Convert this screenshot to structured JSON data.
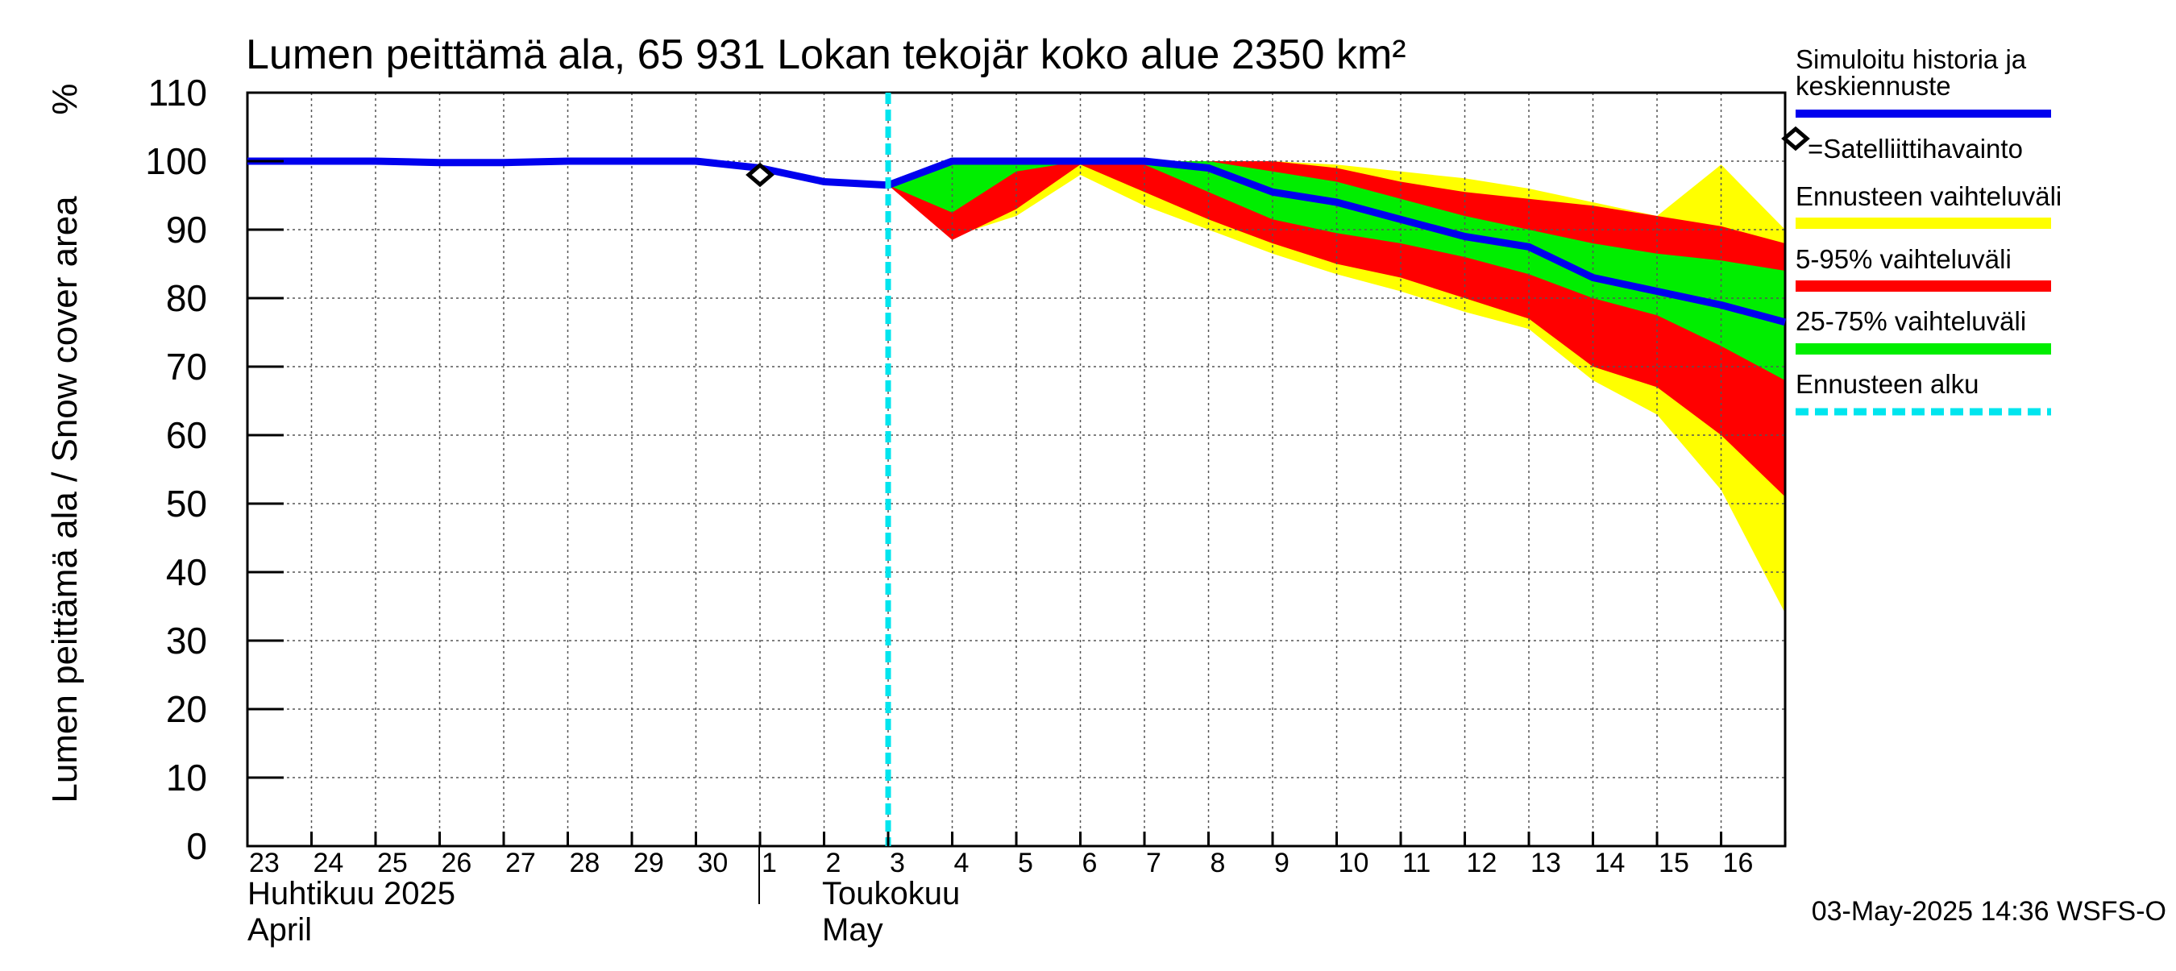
{
  "chart_data": {
    "type": "area",
    "title": "Lumen peittämä ala, 65 931 Lokan tekojär koko alue 2350 km²",
    "ylabel": "Lumen peittämä ala / Snow cover area",
    "yunit": "%",
    "ylim": [
      0,
      110
    ],
    "yticks": [
      0,
      10,
      20,
      30,
      40,
      50,
      60,
      70,
      80,
      90,
      100,
      110
    ],
    "xlim": [
      "2025-04-23",
      "2025-05-16T23:59"
    ],
    "grid": true,
    "x_day_labels": [
      "23",
      "24",
      "25",
      "26",
      "27",
      "28",
      "29",
      "30",
      "1",
      "2",
      "3",
      "4",
      "5",
      "6",
      "7",
      "8",
      "9",
      "10",
      "11",
      "12",
      "13",
      "14",
      "15",
      "16"
    ],
    "month_labels": [
      {
        "fi": "Huhtikuu  2025",
        "en": "April"
      },
      {
        "fi": "Toukokuu",
        "en": "May"
      }
    ],
    "forecast_start": "2025-05-03",
    "history": {
      "name": "Simuloitu historia ja keskiennuste",
      "color": "#0000ee",
      "x": [
        "2025-04-23",
        "2025-04-24",
        "2025-04-25",
        "2025-04-26",
        "2025-04-27",
        "2025-04-28",
        "2025-04-29",
        "2025-04-30",
        "2025-05-01",
        "2025-05-02",
        "2025-05-03"
      ],
      "y": [
        100,
        100,
        100,
        99.8,
        99.8,
        100,
        100,
        100,
        99,
        97,
        96.5
      ]
    },
    "forecast_x": [
      "2025-05-03",
      "2025-05-04",
      "2025-05-05",
      "2025-05-06",
      "2025-05-07",
      "2025-05-08",
      "2025-05-09",
      "2025-05-10",
      "2025-05-11",
      "2025-05-12",
      "2025-05-13",
      "2025-05-14",
      "2025-05-15",
      "2025-05-16",
      "2025-05-17"
    ],
    "median": [
      96.5,
      100,
      100,
      100,
      100,
      99,
      95.5,
      94,
      91.5,
      89,
      87.5,
      83,
      81,
      79,
      76.5
    ],
    "band_minmax": {
      "name": "Ennusteen vaihteluväli",
      "color": "#ffff00",
      "upper": [
        96.5,
        100,
        100,
        100,
        100,
        100,
        100,
        99.5,
        98.5,
        97.5,
        96,
        94,
        92,
        99.5,
        90
      ],
      "lower": [
        96.5,
        89,
        92,
        98,
        93.5,
        90,
        86.5,
        83.5,
        81,
        78,
        75.5,
        68,
        63,
        52,
        34
      ]
    },
    "band_5_95": {
      "name": "5-95% vaihteluväli",
      "color": "#ff0000",
      "upper": [
        96.5,
        100,
        100,
        100,
        100,
        100,
        100,
        99,
        97,
        95.5,
        94.5,
        93.5,
        92,
        90.5,
        88
      ]
    },
    "band_5_95_lower": [
      96.5,
      88.5,
      93,
      99.5,
      95.5,
      91.5,
      88,
      85,
      83,
      80,
      77,
      70,
      67,
      60,
      51
    ],
    "band_25_75": {
      "name": "25-75% vaihteluväli",
      "color": "#00ee00",
      "upper": [
        96.5,
        100,
        100,
        100,
        100,
        100,
        98.5,
        97,
        94.5,
        92,
        90,
        88,
        86.5,
        85.5,
        84
      ],
      "lower": [
        96.5,
        92.5,
        98.5,
        100,
        99.5,
        95.5,
        91.5,
        89.5,
        88,
        86,
        83.5,
        80,
        77.5,
        73,
        68
      ]
    },
    "satellite_observation": {
      "x": "2025-05-01",
      "y": 98
    },
    "legend": {
      "placement": "right",
      "history_label": "Simuloitu historia ja keskiennuste",
      "satellite_label": "=Satelliittihavainto",
      "minmax_label": "Ennusteen vaihteluväli",
      "band_5_95_label": "5-95% vaihteluväli",
      "band_25_75_label": "25-75% vaihteluväli",
      "forecast_start_label": "Ennusteen alku",
      "forecast_start_color": "#00e5ee"
    },
    "footer": "03-May-2025 14:36 WSFS-O"
  }
}
